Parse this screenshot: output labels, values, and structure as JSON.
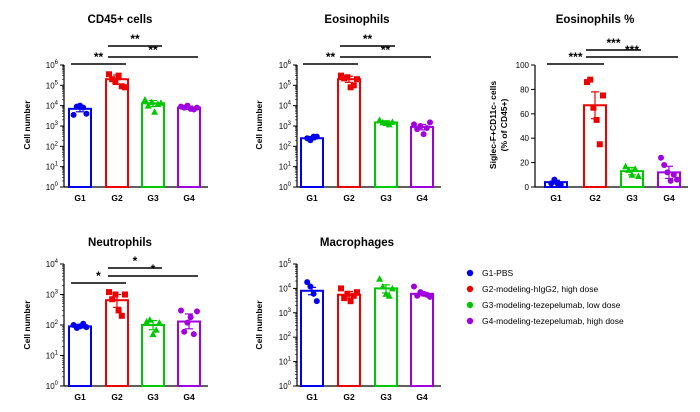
{
  "groups": [
    {
      "label": "G1",
      "legend": "G1-PBS",
      "color": "#0000ee"
    },
    {
      "label": "G2",
      "legend": "G2-modeling-hIgG2, high dose",
      "color": "#ee0000"
    },
    {
      "label": "G3",
      "legend": "G3-modeling-tezepelumab, low dose",
      "color": "#00c800"
    },
    {
      "label": "G4",
      "legend": "G4-modeling-tezepelumab, high dose",
      "color": "#a000e0"
    }
  ],
  "chart_data": [
    {
      "type": "bar",
      "title": "CD45+ cells",
      "ylabel": "Cell number",
      "scale": "log",
      "ylim": [
        1,
        1000000
      ],
      "yticks": [
        1,
        10,
        100,
        1000,
        10000,
        100000,
        1000000
      ],
      "ytick_labels": [
        {
          "b": "10",
          "e": "0"
        },
        {
          "b": "10",
          "e": "1"
        },
        {
          "b": "10",
          "e": "2"
        },
        {
          "b": "10",
          "e": "3"
        },
        {
          "b": "10",
          "e": "4"
        },
        {
          "b": "10",
          "e": "5"
        },
        {
          "b": "10",
          "e": "6"
        }
      ],
      "categories": [
        "G1",
        "G2",
        "G3",
        "G4"
      ],
      "values": [
        7000,
        200000,
        13000,
        8000
      ],
      "errors": [
        [
          5000,
          9500
        ],
        [
          110000,
          320000
        ],
        [
          9000,
          18000
        ],
        [
          6500,
          9500
        ]
      ],
      "points": [
        [
          3500,
          9000,
          10000,
          8000,
          4000
        ],
        [
          350000,
          200000,
          150000,
          300000,
          90000,
          80000
        ],
        [
          20000,
          10000,
          15000,
          5000,
          12000,
          14000
        ],
        [
          9000,
          8000,
          10000,
          7000,
          6500,
          8000
        ]
      ],
      "significance": [
        {
          "from": 0,
          "to": 1,
          "label": "**"
        },
        {
          "from": 1,
          "to": 2,
          "label": "**"
        },
        {
          "from": 1,
          "to": 3,
          "label": "**"
        }
      ]
    },
    {
      "type": "bar",
      "title": "Eosinophils",
      "ylabel": "Cell number",
      "scale": "log",
      "ylim": [
        1,
        1000000
      ],
      "yticks": [
        1,
        10,
        100,
        1000,
        10000,
        100000,
        1000000
      ],
      "ytick_labels": [
        {
          "b": "10",
          "e": "0"
        },
        {
          "b": "10",
          "e": "1"
        },
        {
          "b": "10",
          "e": "2"
        },
        {
          "b": "10",
          "e": "3"
        },
        {
          "b": "10",
          "e": "4"
        },
        {
          "b": "10",
          "e": "5"
        },
        {
          "b": "10",
          "e": "6"
        }
      ],
      "categories": [
        "G1",
        "G2",
        "G3",
        "G4"
      ],
      "values": [
        250,
        200000,
        1500,
        900
      ],
      "errors": [
        [
          210,
          300
        ],
        [
          140000,
          280000
        ],
        [
          1300,
          1800
        ],
        [
          650,
          1200
        ]
      ],
      "points": [
        [
          250,
          200,
          300,
          300
        ],
        [
          300000,
          220000,
          250000,
          80000,
          100000,
          200000
        ],
        [
          2000,
          1500,
          1400,
          1200,
          1600
        ],
        [
          1200,
          700,
          1000,
          400,
          800,
          1500
        ]
      ],
      "significance": [
        {
          "from": 0,
          "to": 1,
          "label": "**"
        },
        {
          "from": 1,
          "to": 2,
          "label": "**"
        },
        {
          "from": 1,
          "to": 3,
          "label": "**"
        }
      ]
    },
    {
      "type": "bar",
      "title": "Eosinophils %",
      "ylabel": "Siglec-F+CD11c- cells",
      "ylabel2": "(% of CD45+)",
      "scale": "linear",
      "ylim": [
        0,
        100
      ],
      "yticks": [
        0,
        20,
        40,
        60,
        80,
        100
      ],
      "ytick_labels": [
        "0",
        "20",
        "40",
        "60",
        "80",
        "100"
      ],
      "categories": [
        "G1",
        "G2",
        "G3",
        "G4"
      ],
      "values": [
        4,
        67,
        13,
        12
      ],
      "errors": [
        [
          2.5,
          5.5
        ],
        [
          56,
          78
        ],
        [
          10,
          16
        ],
        [
          7,
          17
        ]
      ],
      "points": [
        [
          3,
          6,
          3,
          2
        ],
        [
          86,
          88,
          65,
          55,
          35,
          75
        ],
        [
          17,
          14,
          10,
          15,
          9
        ],
        [
          24,
          18,
          12,
          5,
          10,
          6
        ]
      ],
      "significance": [
        {
          "from": 0,
          "to": 1,
          "label": "***"
        },
        {
          "from": 1,
          "to": 2,
          "label": "***"
        },
        {
          "from": 1,
          "to": 3,
          "label": "***"
        }
      ]
    },
    {
      "type": "bar",
      "title": "Neutrophils",
      "ylabel": "Cell number",
      "scale": "log",
      "ylim": [
        1,
        10000
      ],
      "yticks": [
        1,
        10,
        100,
        1000,
        10000
      ],
      "ytick_labels": [
        {
          "b": "10",
          "e": "0"
        },
        {
          "b": "10",
          "e": "1"
        },
        {
          "b": "10",
          "e": "2"
        },
        {
          "b": "10",
          "e": "3"
        },
        {
          "b": "10",
          "e": "4"
        }
      ],
      "categories": [
        "G1",
        "G2",
        "G3",
        "G4"
      ],
      "values": [
        90,
        650,
        100,
        130
      ],
      "errors": [
        [
          80,
          105
        ],
        [
          380,
          1000
        ],
        [
          70,
          140
        ],
        [
          75,
          230
        ]
      ],
      "points": [
        [
          100,
          80,
          90,
          110,
          85
        ],
        [
          1200,
          700,
          1000,
          300,
          200,
          1000
        ],
        [
          130,
          150,
          50,
          70,
          120
        ],
        [
          300,
          60,
          120,
          180,
          50,
          280
        ]
      ],
      "significance": [
        {
          "from": 0,
          "to": 1,
          "label": "*"
        },
        {
          "from": 1,
          "to": 2,
          "label": "*"
        },
        {
          "from": 1,
          "to": 3,
          "label": "*"
        }
      ]
    },
    {
      "type": "bar",
      "title": "Macrophages",
      "ylabel": "Cell number",
      "scale": "log",
      "ylim": [
        1,
        100000
      ],
      "yticks": [
        1,
        10,
        100,
        1000,
        10000,
        100000
      ],
      "ytick_labels": [
        {
          "b": "10",
          "e": "0"
        },
        {
          "b": "10",
          "e": "1"
        },
        {
          "b": "10",
          "e": "2"
        },
        {
          "b": "10",
          "e": "3"
        },
        {
          "b": "10",
          "e": "4"
        },
        {
          "b": "10",
          "e": "5"
        }
      ],
      "categories": [
        "G1",
        "G2",
        "G3",
        "G4"
      ],
      "values": [
        8000,
        5500,
        10000,
        6000
      ],
      "errors": [
        [
          5500,
          11000
        ],
        [
          4000,
          7500
        ],
        [
          6500,
          14000
        ],
        [
          5000,
          7200
        ]
      ],
      "points": [
        [
          18000,
          12000,
          6000,
          3000
        ],
        [
          10000,
          4000,
          6000,
          3000,
          5000,
          7000
        ],
        [
          25000,
          12000,
          6000,
          5000,
          10000
        ],
        [
          12000,
          5000,
          7000,
          6000,
          5500,
          4500
        ]
      ],
      "significance": []
    }
  ]
}
